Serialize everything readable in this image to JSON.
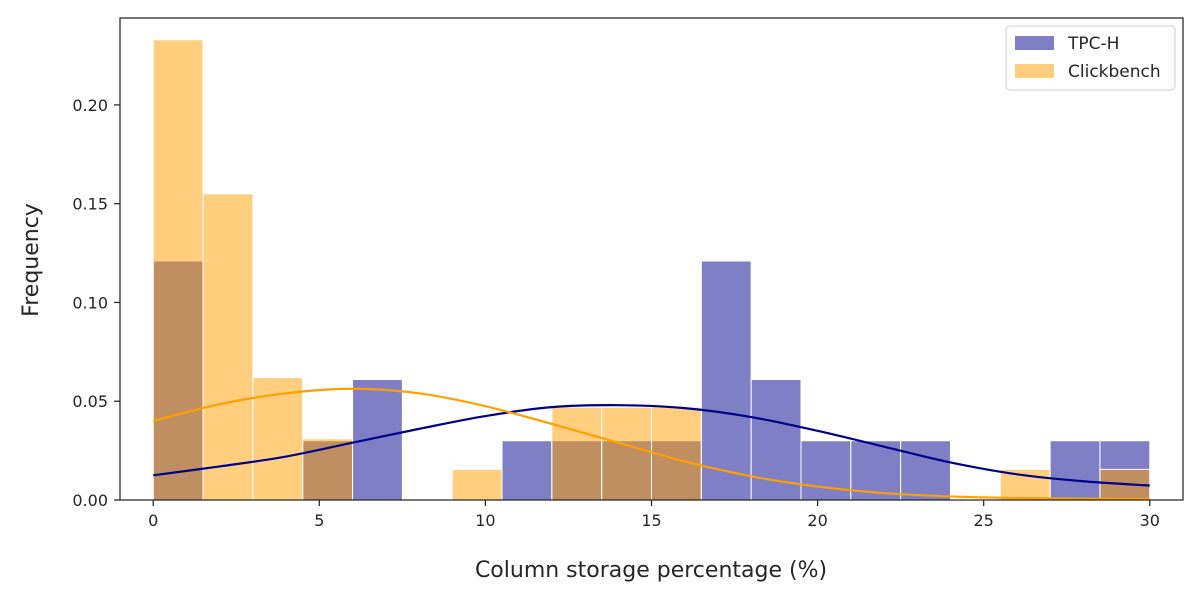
{
  "chart_data": {
    "type": "histogram",
    "xlabel": "Column storage percentage (%)",
    "ylabel": "Frequency",
    "xlim": [
      -1,
      31
    ],
    "ylim": [
      0,
      0.244
    ],
    "xticks": [
      0,
      5,
      10,
      15,
      20,
      25,
      30
    ],
    "yticks": [
      0.0,
      0.05,
      0.1,
      0.15,
      0.2
    ],
    "ytick_labels": [
      "0.00",
      "0.05",
      "0.10",
      "0.15",
      "0.20"
    ],
    "bin_edges": [
      0,
      1.5,
      3,
      4.5,
      6,
      7.5,
      9,
      10.5,
      12,
      13.5,
      15,
      16.5,
      18,
      19.5,
      21,
      22.5,
      24,
      25.5,
      27,
      28.5,
      30
    ],
    "grid": false,
    "legend_position": "top-right",
    "series": [
      {
        "name": "TPC-H",
        "color": "#00008b",
        "bar_color": "#8080c5",
        "values": [
          0.121,
          0.0,
          0.0,
          0.03,
          0.061,
          0.0,
          0.0,
          0.03,
          0.03,
          0.03,
          0.03,
          0.121,
          0.061,
          0.03,
          0.03,
          0.03,
          0.0,
          0.0,
          0.03,
          0.03
        ],
        "kde": [
          [
            0,
            0.0125
          ],
          [
            2,
            0.017
          ],
          [
            4,
            0.022
          ],
          [
            6,
            0.029
          ],
          [
            8,
            0.036
          ],
          [
            10,
            0.0425
          ],
          [
            12,
            0.047
          ],
          [
            14,
            0.048
          ],
          [
            16,
            0.0465
          ],
          [
            18,
            0.042
          ],
          [
            20,
            0.035
          ],
          [
            22,
            0.027
          ],
          [
            24,
            0.019
          ],
          [
            26,
            0.013
          ],
          [
            28,
            0.0095
          ],
          [
            30,
            0.0073
          ]
        ]
      },
      {
        "name": "Clickbench",
        "color": "#ff9f00",
        "bar_color": "#fecf7f",
        "values": [
          0.233,
          0.155,
          0.062,
          0.031,
          0.0,
          0.0,
          0.0155,
          0.0,
          0.047,
          0.047,
          0.047,
          0.0,
          0.0,
          0.0,
          0.0,
          0.0,
          0.0,
          0.0155,
          0.0,
          0.0155
        ],
        "kde": [
          [
            0,
            0.04
          ],
          [
            2,
            0.0485
          ],
          [
            4,
            0.054
          ],
          [
            6,
            0.0563
          ],
          [
            8,
            0.054
          ],
          [
            10,
            0.0475
          ],
          [
            12,
            0.0385
          ],
          [
            14,
            0.029
          ],
          [
            16,
            0.0195
          ],
          [
            18,
            0.012
          ],
          [
            20,
            0.0068
          ],
          [
            22,
            0.0035
          ],
          [
            24,
            0.0018
          ],
          [
            26,
            0.001
          ],
          [
            28,
            0.0007
          ],
          [
            30,
            0.0006
          ]
        ]
      }
    ]
  }
}
